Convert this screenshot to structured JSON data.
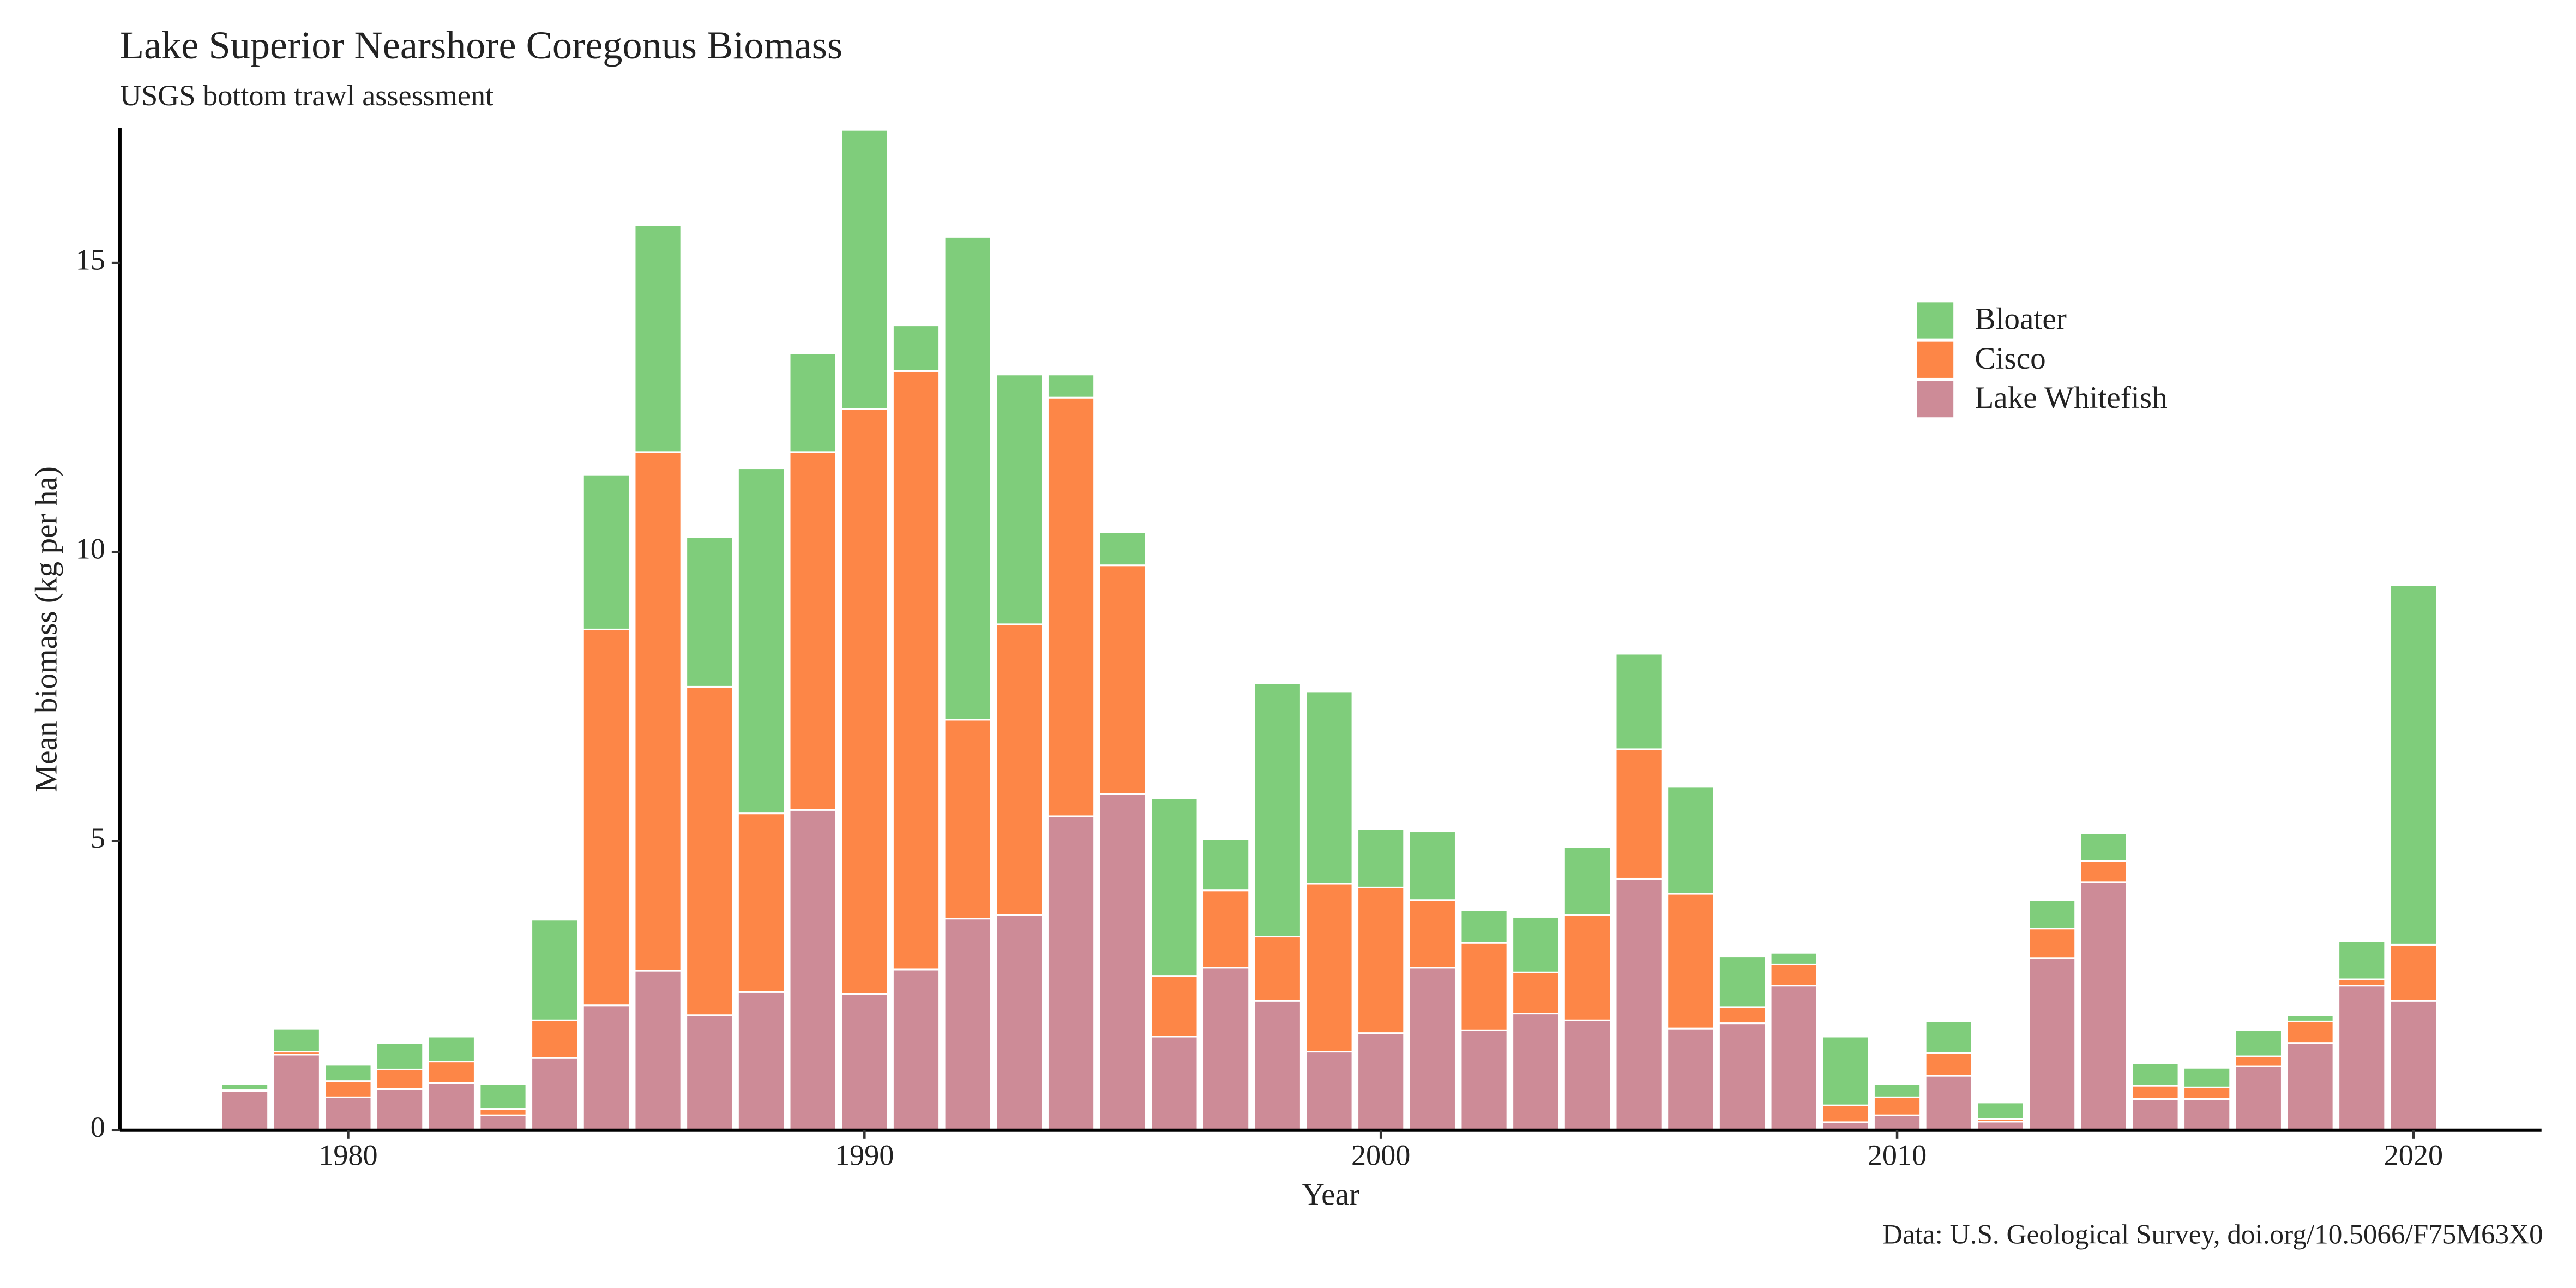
{
  "chart_data": {
    "type": "stacked_bar",
    "title": "Lake Superior Nearshore Coregonus Biomass",
    "subtitle": "USGS bottom trawl assessment",
    "x_label": "Year",
    "y_label": "Mean biomass (kg per ha)",
    "caption": "Data: U.S. Geological Survey, doi.org/10.5066/F75M63X0",
    "x": [
      1978,
      1979,
      1980,
      1981,
      1982,
      1983,
      1984,
      1985,
      1986,
      1987,
      1988,
      1989,
      1990,
      1991,
      1992,
      1993,
      1994,
      1995,
      1996,
      1997,
      1998,
      1999,
      2000,
      2001,
      2002,
      2003,
      2004,
      2005,
      2006,
      2007,
      2008,
      2009,
      2010,
      2011,
      2012,
      2013,
      2014,
      2015,
      2016,
      2017,
      2018,
      2019,
      2020
    ],
    "series": [
      {
        "name": "Lake Whitefish",
        "color": "#cd8b97",
        "values": [
          0.68,
          1.31,
          0.57,
          0.71,
          0.82,
          0.26,
          1.25,
          2.16,
          2.76,
          1.99,
          2.39,
          5.54,
          2.36,
          2.78,
          3.66,
          3.72,
          5.43,
          5.82,
          1.62,
          2.81,
          2.24,
          1.36,
          1.68,
          2.81,
          1.73,
          2.02,
          1.9,
          4.35,
          1.76,
          1.85,
          2.5,
          0.14,
          0.26,
          0.94,
          0.15,
          2.98,
          4.29,
          0.54,
          0.54,
          1.11,
          1.51,
          2.5,
          2.24
        ]
      },
      {
        "name": "Cisco",
        "color": "#fd8647",
        "values": [
          0.02,
          0.05,
          0.28,
          0.34,
          0.37,
          0.11,
          0.65,
          6.5,
          8.97,
          5.68,
          3.09,
          6.19,
          10.11,
          10.35,
          3.44,
          5.03,
          7.24,
          3.95,
          1.05,
          1.34,
          1.11,
          2.9,
          2.52,
          1.17,
          1.51,
          0.71,
          1.82,
          2.24,
          2.33,
          0.28,
          0.37,
          0.29,
          0.31,
          0.4,
          0.05,
          0.51,
          0.37,
          0.23,
          0.2,
          0.17,
          0.37,
          0.11,
          0.97
        ]
      },
      {
        "name": "Bloater",
        "color": "#7fcd7b",
        "values": [
          0.1,
          0.4,
          0.29,
          0.46,
          0.43,
          0.43,
          1.74,
          2.68,
          3.92,
          2.59,
          5.97,
          1.71,
          4.83,
          0.79,
          8.35,
          4.32,
          0.4,
          0.57,
          3.07,
          0.88,
          4.38,
          3.33,
          1.0,
          1.19,
          0.57,
          0.96,
          1.17,
          1.65,
          1.85,
          0.88,
          0.2,
          1.19,
          0.23,
          0.54,
          0.28,
          0.49,
          0.48,
          0.39,
          0.34,
          0.45,
          0.11,
          0.66,
          6.22
        ]
      }
    ],
    "xlim": [
      1975.58,
      2022.48
    ],
    "xticks": [
      1980,
      1990,
      2000,
      2010,
      2020
    ],
    "ylim": [
      0,
      17.33
    ],
    "yticks": [
      0,
      5,
      10,
      15
    ],
    "grid": false,
    "legend_position": "upper-right"
  }
}
